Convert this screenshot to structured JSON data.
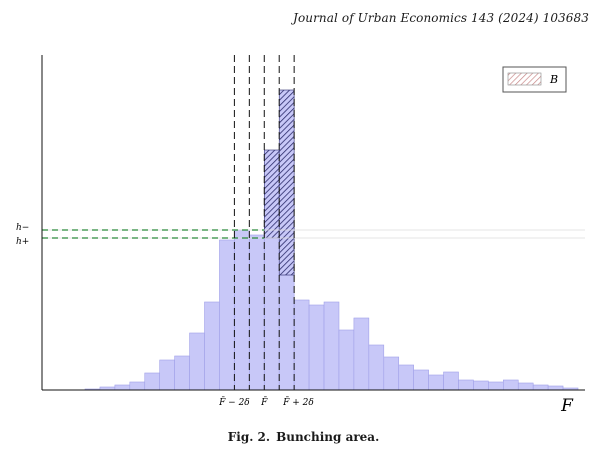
{
  "journal": "Journal of Urban Economics 143 (2024) 103683",
  "caption": {
    "label": "Fig. 2.",
    "text": "Bunching area."
  },
  "colors": {
    "bar_fill": "#c8c8f8",
    "bar_stroke": "#a0a0e8",
    "hatch": "#2a2a6a",
    "green_dash": "#2a8a3a",
    "black": "#111111"
  },
  "chart_data": {
    "type": "bar",
    "xlabel": "F",
    "ylabel": "",
    "title": "",
    "legend": {
      "label": "B",
      "position": "top-right"
    },
    "x_ticks": [
      "F̄ − 2δ",
      "F̄",
      "F̄ + 2δ"
    ],
    "y_ticks": [
      "h−",
      "h+"
    ],
    "y_tick_values": [
      160,
      152
    ],
    "ylim": [
      0,
      315
    ],
    "bins": 33,
    "values": [
      1,
      3,
      5,
      8,
      17,
      30,
      34,
      57,
      88,
      150,
      160,
      155,
      152,
      115,
      90,
      85,
      88,
      60,
      72,
      45,
      33,
      25,
      20,
      15,
      18,
      10,
      9,
      8,
      10,
      7,
      5,
      4,
      2
    ],
    "bunching": {
      "label": "B",
      "bins": [
        12,
        13
      ],
      "tops": [
        240,
        300
      ]
    },
    "vlines_at_bins": [
      10,
      11,
      12,
      13,
      14
    ],
    "hlines": [
      160,
      152
    ]
  }
}
